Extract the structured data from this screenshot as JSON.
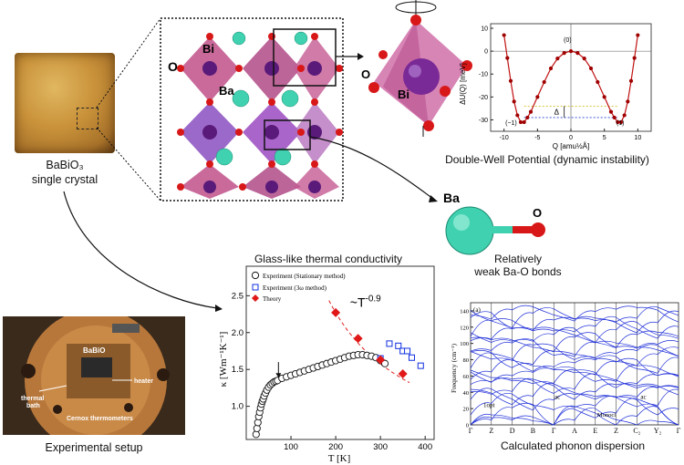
{
  "crystal": {
    "name": "BaBiO₃",
    "desc": "single crystal"
  },
  "structure": {
    "label_o": "O",
    "label_bi": "Bi",
    "label_ba": "Ba"
  },
  "octahedron": {
    "label_o": "O",
    "label_bi": "Bi"
  },
  "potential_caption": "Double-Well Potential (dynamic instability)",
  "bond": {
    "label_ba": "Ba",
    "label_o": "O",
    "caption_1": "Relatively",
    "caption_2": "weak Ba-O bonds"
  },
  "glass_title": "Glass-like thermal conductivity",
  "setup": {
    "caption": "Experimental setup",
    "label_sample": "BaBiO",
    "label_heater": "heater",
    "label_bath_1": "thermal",
    "label_bath_2": "bath",
    "label_thermo": "Cernox thermometers"
  },
  "dispersion_caption": "Calculated phonon dispersion",
  "chart_data": [
    {
      "type": "line",
      "title": "",
      "xlabel": "Q [amu½Å]",
      "ylabel": "ΔU(Q) [meV]",
      "xlim": [
        -12,
        12
      ],
      "ylim": [
        -35,
        12
      ],
      "xticks": [
        -10,
        -5,
        0,
        5,
        10
      ],
      "yticks": [
        -30,
        -20,
        -10,
        0,
        10
      ],
      "annotations": [
        "(0)",
        "(−1)",
        "(1)",
        "Δ"
      ],
      "series": [
        {
          "name": "",
          "x": [
            -10,
            -9.5,
            -9,
            -8.5,
            -8,
            -7.5,
            -7,
            -6.5,
            -6,
            -5,
            -4,
            -3,
            -2,
            -1,
            0,
            1,
            2,
            3,
            4,
            5,
            6,
            6.5,
            7,
            7.5,
            8,
            8.5,
            9,
            9.5,
            10
          ],
          "y": [
            7,
            -3,
            -13,
            -22,
            -28,
            -31,
            -31,
            -29,
            -26.5,
            -20,
            -13.5,
            -7.5,
            -3.2,
            -0.8,
            0,
            -0.8,
            -3.2,
            -7.5,
            -13.5,
            -20,
            -26.5,
            -29,
            -31,
            -31,
            -28,
            -22,
            -13,
            -3,
            7
          ]
        }
      ],
      "reference_levels": [
        -24,
        -29
      ]
    },
    {
      "type": "scatter",
      "title": "Glass-like thermal conductivity",
      "xlabel": "T [K]",
      "ylabel": "κ [Wm⁻¹K⁻¹]",
      "xlim": [
        0,
        420
      ],
      "ylim": [
        0.55,
        2.9
      ],
      "xticks": [
        100,
        200,
        300,
        400
      ],
      "yticks": [
        1.0,
        1.5,
        2.0,
        2.5
      ],
      "annotation": "~T",
      "annotation_exp": "-0.9",
      "series": [
        {
          "name": "Experiment (Stationary method)",
          "marker": "open-circle",
          "x": [
            22,
            24,
            26,
            28,
            30,
            32,
            34,
            36,
            38,
            40,
            43,
            46,
            50,
            54,
            58,
            62,
            66,
            70,
            80,
            90,
            100,
            110,
            120,
            130,
            140,
            150,
            160,
            170,
            180,
            190,
            200,
            210,
            220,
            230,
            240,
            250,
            260,
            270,
            280,
            290,
            300,
            310
          ],
          "y": [
            0.62,
            0.7,
            0.78,
            0.86,
            0.92,
            0.98,
            1.03,
            1.07,
            1.1,
            1.14,
            1.18,
            1.22,
            1.26,
            1.29,
            1.31,
            1.33,
            1.34,
            1.35,
            1.38,
            1.4,
            1.42,
            1.44,
            1.46,
            1.48,
            1.5,
            1.52,
            1.54,
            1.56,
            1.58,
            1.6,
            1.62,
            1.64,
            1.66,
            1.68,
            1.69,
            1.7,
            1.7,
            1.69,
            1.68,
            1.66,
            1.62,
            1.58
          ]
        },
        {
          "name": "Experiment (3ω method)",
          "marker": "open-square",
          "x": [
            300,
            320,
            340,
            350,
            360,
            370,
            390
          ],
          "y": [
            1.65,
            1.85,
            1.82,
            1.75,
            1.75,
            1.66,
            1.55
          ]
        },
        {
          "name": "Theory",
          "marker": "red-diamond",
          "x": [
            200,
            250,
            300,
            350
          ],
          "y": [
            2.27,
            1.92,
            1.63,
            1.44
          ]
        }
      ]
    },
    {
      "type": "line",
      "title": "",
      "ylabel": "Frequency (cm⁻¹)",
      "ylim": [
        0,
        150
      ],
      "yticks": [
        0,
        20,
        40,
        60,
        80,
        100,
        120,
        140
      ],
      "x_path_labels": [
        "Γ",
        "Z",
        "D",
        "B",
        "Γ",
        "A",
        "E",
        "Z",
        "C₂",
        "Y₂",
        "Γ"
      ],
      "annotations": [
        "(a)",
        "1opt",
        "ac",
        "Monocl",
        "ac"
      ]
    }
  ]
}
